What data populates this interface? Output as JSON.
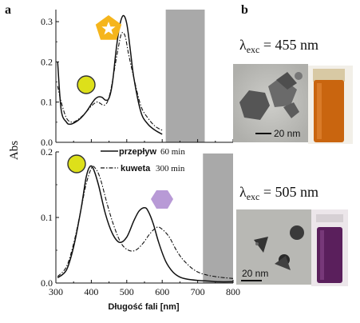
{
  "panel_a_label": "a",
  "panel_b_label": "b",
  "ylabel": "Abs",
  "xlabel": "Długość fali [nm]",
  "legend": {
    "line1_name": "przepływ",
    "line1_time": "60 min",
    "line2_name": "kuweta",
    "line2_time": "300 min"
  },
  "lambda_top": {
    "symbol": "λ",
    "sub": "exc",
    "value": " = 455 nm"
  },
  "lambda_bottom": {
    "symbol": "λ",
    "sub": "exc",
    "value": " = 505 nm"
  },
  "scalebar_top": "20 nm",
  "scalebar_bottom": "20 nm",
  "colors": {
    "circle": "#dde01a",
    "star_pentagon": "#f5b51c",
    "hexagon": "#b89ad6",
    "shaded_band": "#a9a9a9",
    "vial_top": "#c9650f",
    "vial_bottom": "#5a1f5c"
  },
  "chart_data": [
    {
      "type": "line",
      "panel": "top",
      "xlim": [
        300,
        800
      ],
      "ylim": [
        0,
        0.33
      ],
      "yticks": [
        "0.0",
        "0.1",
        "0.2",
        "0.3"
      ],
      "shaded_band": [
        610,
        720
      ],
      "series": [
        {
          "name": "przepływ 60 min",
          "style": "solid",
          "x": [
            305,
            315,
            330,
            340,
            355,
            370,
            385,
            400,
            410,
            420,
            430,
            440,
            450,
            460,
            470,
            480,
            490,
            500,
            510,
            520,
            540,
            560,
            580,
            600
          ],
          "y": [
            0.2,
            0.08,
            0.05,
            0.045,
            0.05,
            0.06,
            0.075,
            0.095,
            0.107,
            0.113,
            0.112,
            0.105,
            0.11,
            0.15,
            0.23,
            0.29,
            0.315,
            0.295,
            0.23,
            0.16,
            0.075,
            0.045,
            0.03,
            0.02
          ]
        },
        {
          "name": "kuweta 300 min",
          "style": "dash-dot",
          "x": [
            305,
            315,
            330,
            345,
            360,
            380,
            400,
            415,
            425,
            435,
            445,
            455,
            465,
            475,
            485,
            495,
            505,
            520,
            540,
            560,
            580,
            600
          ],
          "y": [
            0.14,
            0.1,
            0.06,
            0.05,
            0.055,
            0.07,
            0.09,
            0.1,
            0.097,
            0.092,
            0.1,
            0.13,
            0.18,
            0.23,
            0.27,
            0.265,
            0.22,
            0.16,
            0.09,
            0.06,
            0.04,
            0.03
          ]
        }
      ]
    },
    {
      "type": "line",
      "panel": "bottom",
      "xlim": [
        300,
        800
      ],
      "xticks": [
        "300",
        "400",
        "500",
        "600",
        "700",
        "800"
      ],
      "ylim": [
        0,
        0.2
      ],
      "yticks": [
        "0.0",
        "0.1",
        "0.2"
      ],
      "shaded_band": [
        715,
        800
      ],
      "series": [
        {
          "name": "przepływ 60 min",
          "style": "solid",
          "x": [
            305,
            330,
            350,
            370,
            385,
            395,
            405,
            420,
            440,
            460,
            480,
            500,
            520,
            535,
            550,
            560,
            575,
            590,
            610,
            630,
            650,
            670,
            700,
            730,
            760,
            800
          ],
          "y": [
            0.008,
            0.02,
            0.055,
            0.11,
            0.16,
            0.177,
            0.175,
            0.15,
            0.105,
            0.075,
            0.062,
            0.07,
            0.095,
            0.11,
            0.115,
            0.11,
            0.09,
            0.062,
            0.033,
            0.017,
            0.009,
            0.006,
            0.004,
            0.003,
            0.002,
            0.002
          ]
        },
        {
          "name": "kuweta 300 min",
          "style": "dash-dot",
          "x": [
            305,
            330,
            350,
            370,
            385,
            400,
            410,
            425,
            445,
            465,
            485,
            505,
            525,
            545,
            565,
            585,
            600,
            620,
            640,
            660,
            690,
            720,
            760,
            800
          ],
          "y": [
            0.01,
            0.025,
            0.06,
            0.11,
            0.15,
            0.175,
            0.176,
            0.16,
            0.12,
            0.085,
            0.06,
            0.05,
            0.05,
            0.06,
            0.075,
            0.085,
            0.082,
            0.07,
            0.05,
            0.035,
            0.02,
            0.013,
            0.009,
            0.007
          ]
        }
      ]
    }
  ]
}
